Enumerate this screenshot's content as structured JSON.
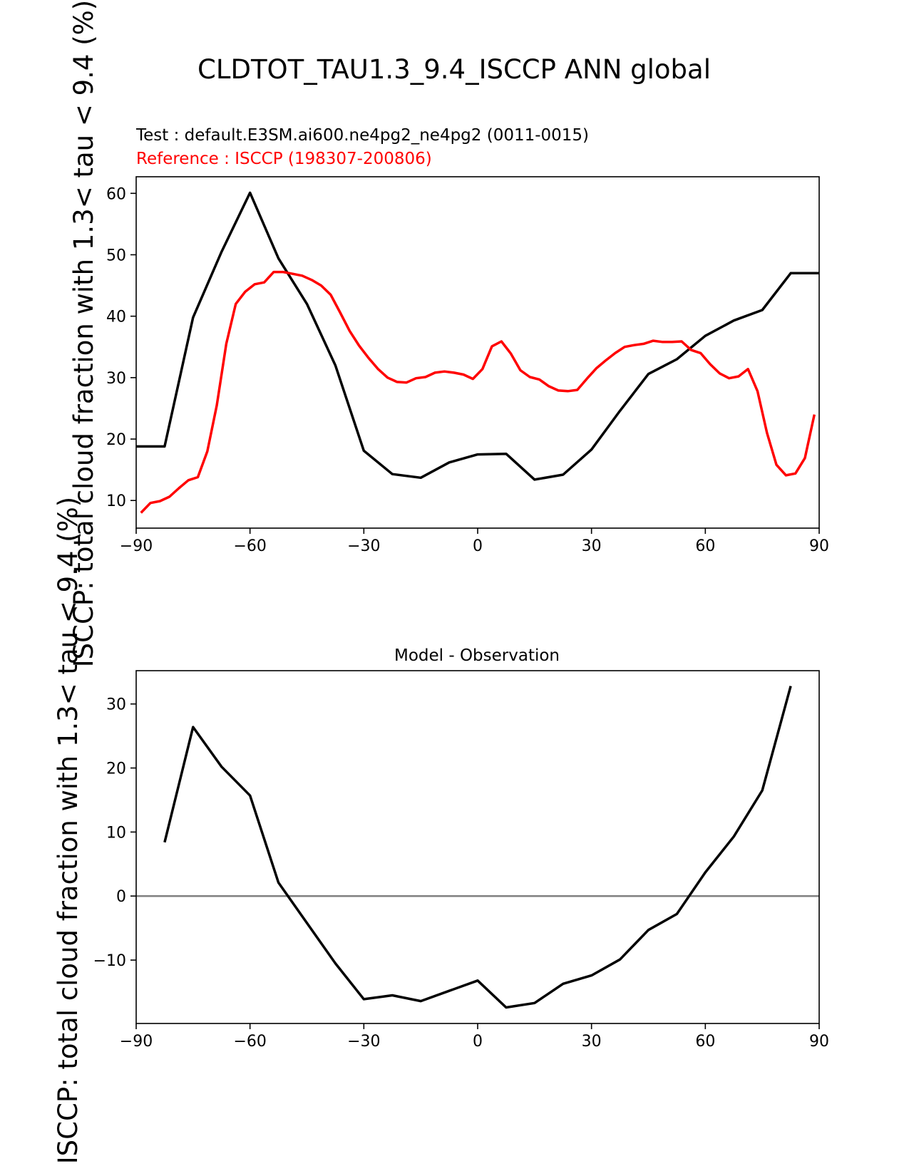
{
  "figure": {
    "title": "CLDTOT_TAU1.3_9.4_ISCCP ANN global",
    "test_label": "Test : default.E3SM.ai600.ne4pg2_ne4pg2 (0011-0015)",
    "reference_label": "Reference : ISCCP (198307-200806)"
  },
  "colors": {
    "test": "#000000",
    "reference": "#ff0000",
    "zero_line": "#808080",
    "axes": "#000000"
  },
  "chart_data": [
    {
      "type": "line",
      "title": "",
      "xlabel": "",
      "ylabel": "ISCCP: total cloud fraction with 1.3< tau < 9.4 (%)",
      "xlim": [
        -90,
        90
      ],
      "ylim": [
        5.5,
        62.7
      ],
      "xticks": [
        -90,
        -60,
        -30,
        0,
        30,
        60,
        90
      ],
      "xtick_labels": [
        "−90",
        "−60",
        "−30",
        "0",
        "30",
        "60",
        "90"
      ],
      "yticks": [
        10,
        20,
        30,
        40,
        50,
        60
      ],
      "ytick_labels": [
        "10",
        "20",
        "30",
        "40",
        "50",
        "60"
      ],
      "series": [
        {
          "name": "Test",
          "color": "#000000",
          "x": [
            -90,
            -82.5,
            -75,
            -67.5,
            -60,
            -52.5,
            -45,
            -37.5,
            -30,
            -22.5,
            -15,
            -7.5,
            0,
            7.5,
            15,
            22.5,
            30,
            37.5,
            45,
            52.5,
            60,
            67.5,
            75,
            82.5,
            90
          ],
          "y": [
            18.8,
            18.8,
            39.8,
            50.5,
            60.1,
            49.4,
            42.0,
            32.0,
            18.1,
            14.3,
            13.7,
            16.2,
            17.5,
            17.6,
            13.4,
            14.2,
            18.3,
            24.6,
            30.6,
            33.0,
            36.8,
            39.3,
            41.0,
            47.0,
            47.0
          ]
        },
        {
          "name": "Reference",
          "color": "#ff0000",
          "x": [
            -88.75,
            -86.25,
            -83.75,
            -81.25,
            -78.75,
            -76.25,
            -73.75,
            -71.25,
            -68.75,
            -66.25,
            -63.75,
            -61.25,
            -58.75,
            -56.25,
            -53.75,
            -51.25,
            -48.75,
            -46.25,
            -43.75,
            -41.25,
            -38.75,
            -36.25,
            -33.75,
            -31.25,
            -28.75,
            -26.25,
            -23.75,
            -21.25,
            -18.75,
            -16.25,
            -13.75,
            -11.25,
            -8.75,
            -6.25,
            -3.75,
            -1.25,
            1.25,
            3.75,
            6.25,
            8.75,
            11.25,
            13.75,
            16.25,
            18.75,
            21.25,
            23.75,
            26.25,
            28.75,
            31.25,
            33.75,
            36.25,
            38.75,
            41.25,
            43.75,
            46.25,
            48.75,
            51.25,
            53.75,
            56.25,
            58.75,
            61.25,
            63.75,
            66.25,
            68.75,
            71.25,
            73.75,
            76.25,
            78.75,
            81.25,
            83.75,
            86.25,
            88.75
          ],
          "y": [
            8.0,
            9.6,
            9.9,
            10.6,
            12.0,
            13.3,
            13.8,
            18.0,
            25.5,
            35.5,
            42.0,
            44.0,
            45.2,
            45.5,
            47.2,
            47.2,
            46.9,
            46.6,
            45.9,
            45.0,
            43.5,
            40.6,
            37.6,
            35.2,
            33.2,
            31.4,
            30.0,
            29.3,
            29.2,
            29.9,
            30.1,
            30.8,
            31.0,
            30.8,
            30.5,
            29.8,
            31.4,
            35.1,
            35.9,
            33.9,
            31.2,
            30.1,
            29.7,
            28.6,
            27.9,
            27.8,
            28.0,
            29.8,
            31.5,
            32.8,
            34.0,
            35.0,
            35.3,
            35.5,
            36.0,
            35.8,
            35.8,
            35.9,
            34.5,
            34.0,
            32.2,
            30.7,
            29.9,
            30.2,
            31.4,
            27.8,
            21.0,
            15.8,
            14.1,
            14.4,
            16.9,
            24.0
          ]
        }
      ]
    },
    {
      "type": "line",
      "title": "Model - Observation",
      "xlabel": "",
      "ylabel": "ISCCP: total cloud fraction with 1.3< tau < 9.4 (%)",
      "xlim": [
        -90,
        90
      ],
      "ylim": [
        -19.9,
        35.2
      ],
      "xticks": [
        -90,
        -60,
        -30,
        0,
        30,
        60,
        90
      ],
      "xtick_labels": [
        "−90",
        "−60",
        "−30",
        "0",
        "30",
        "60",
        "90"
      ],
      "yticks": [
        -10,
        0,
        10,
        20,
        30
      ],
      "ytick_labels": [
        "−10",
        "0",
        "10",
        "20",
        "30"
      ],
      "zero_line": 0,
      "series": [
        {
          "name": "Model - Observation",
          "color": "#000000",
          "x": [
            -82.5,
            -75,
            -67.5,
            -60,
            -52.5,
            -45,
            -37.5,
            -30,
            -22.5,
            -15,
            -7.5,
            0,
            7.5,
            15,
            22.5,
            30,
            37.5,
            45,
            52.5,
            60,
            67.5,
            75,
            82.5
          ],
          "y": [
            8.4,
            26.4,
            20.2,
            15.7,
            2.1,
            -4.2,
            -10.5,
            -16.1,
            -15.5,
            -16.4,
            -14.8,
            -13.2,
            -17.4,
            -16.7,
            -13.7,
            -12.4,
            -9.9,
            -5.3,
            -2.8,
            3.7,
            9.3,
            16.5,
            32.8
          ]
        }
      ]
    }
  ]
}
